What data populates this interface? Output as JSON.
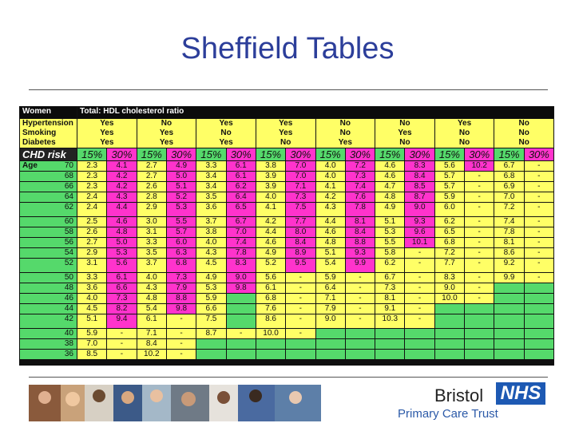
{
  "slide": {
    "title": "Sheffield Tables"
  },
  "table": {
    "header": {
      "group": "Women",
      "metric": "Total: HDL cholesterol ratio"
    },
    "flag_labels": [
      "Hypertension",
      "Smoking",
      "Diabetes"
    ],
    "groups": [
      {
        "h": "Yes",
        "s": "Yes",
        "d": "Yes"
      },
      {
        "h": "No",
        "s": "Yes",
        "d": "Yes"
      },
      {
        "h": "Yes",
        "s": "No",
        "d": "Yes"
      },
      {
        "h": "Yes",
        "s": "Yes",
        "d": "No"
      },
      {
        "h": "No",
        "s": "No",
        "d": "Yes"
      },
      {
        "h": "No",
        "s": "Yes",
        "d": "No"
      },
      {
        "h": "Yes",
        "s": "No",
        "d": "No"
      },
      {
        "h": "No",
        "s": "No",
        "d": "No"
      }
    ],
    "chd_label": "CHD risk",
    "age_label": "Age",
    "risk_labels": [
      "15%",
      "30%"
    ],
    "rows": [
      {
        "age": "70",
        "v": [
          "2.3",
          "4.1",
          "2.7",
          "4.9",
          "3.3",
          "6.1",
          "3.8",
          "7.0",
          "4.0",
          "7.2",
          "4.6",
          "8.3",
          "5.6",
          "10.2",
          "6.7",
          "-"
        ]
      },
      {
        "age": "68",
        "v": [
          "2.3",
          "4.2",
          "2.7",
          "5.0",
          "3.4",
          "6.1",
          "3.9",
          "7.0",
          "4.0",
          "7.3",
          "4.6",
          "8.4",
          "5.7",
          "-",
          "6.8",
          "-"
        ]
      },
      {
        "age": "66",
        "v": [
          "2.3",
          "4.2",
          "2.6",
          "5.1",
          "3.4",
          "6.2",
          "3.9",
          "7.1",
          "4.1",
          "7.4",
          "4.7",
          "8.5",
          "5.7",
          "-",
          "6.9",
          "-"
        ]
      },
      {
        "age": "64",
        "v": [
          "2.4",
          "4.3",
          "2.8",
          "5.2",
          "3.5",
          "6.4",
          "4.0",
          "7.3",
          "4.2",
          "7.6",
          "4.8",
          "8.7",
          "5.9",
          "-",
          "7.0",
          "-"
        ]
      },
      {
        "age": "62",
        "v": [
          "2.4",
          "4.4",
          "2.9",
          "5.3",
          "3.6",
          "6.5",
          "4.1",
          "7.5",
          "4.3",
          "7.8",
          "4.9",
          "9.0",
          "6.0",
          "-",
          "7.2",
          "-"
        ]
      },
      {
        "age": "60",
        "v": [
          "2.5",
          "4.6",
          "3.0",
          "5.5",
          "3.7",
          "6.7",
          "4.2",
          "7.7",
          "4.4",
          "8.1",
          "5.1",
          "9.3",
          "6.2",
          "-",
          "7.4",
          "-"
        ]
      },
      {
        "age": "58",
        "v": [
          "2.6",
          "4.8",
          "3.1",
          "5.7",
          "3.8",
          "7.0",
          "4.4",
          "8.0",
          "4.6",
          "8.4",
          "5.3",
          "9.6",
          "6.5",
          "-",
          "7.8",
          "-"
        ]
      },
      {
        "age": "56",
        "v": [
          "2.7",
          "5.0",
          "3.3",
          "6.0",
          "4.0",
          "7.4",
          "4.6",
          "8.4",
          "4.8",
          "8.8",
          "5.5",
          "10.1",
          "6.8",
          "-",
          "8.1",
          "-"
        ]
      },
      {
        "age": "54",
        "v": [
          "2.9",
          "5.3",
          "3.5",
          "6.3",
          "4.3",
          "7.8",
          "4.9",
          "8.9",
          "5.1",
          "9.3",
          "5.8",
          "-",
          "7.2",
          "-",
          "8.6",
          "-"
        ]
      },
      {
        "age": "52",
        "v": [
          "3.1",
          "5.6",
          "3.7",
          "6.8",
          "4.5",
          "8.3",
          "5.2",
          "9.5",
          "5.4",
          "9.9",
          "6.2",
          "-",
          "7.7",
          "-",
          "9.2",
          "-"
        ]
      },
      {
        "age": "50",
        "v": [
          "3.3",
          "6.1",
          "4.0",
          "7.3",
          "4.9",
          "9.0",
          "5.6",
          "-",
          "5.9",
          "-",
          "6.7",
          "-",
          "8.3",
          "-",
          "9.9",
          "-"
        ]
      },
      {
        "age": "48",
        "v": [
          "3.6",
          "6.6",
          "4.3",
          "7.9",
          "5.3",
          "9.8",
          "6.1",
          "-",
          "6.4",
          "-",
          "7.3",
          "-",
          "9.0",
          "-",
          "",
          ""
        ]
      },
      {
        "age": "46",
        "v": [
          "4.0",
          "7.3",
          "4.8",
          "8.8",
          "5.9",
          "",
          "6.8",
          "-",
          "7.1",
          "-",
          "8.1",
          "-",
          "10.0",
          "-",
          "",
          ""
        ]
      },
      {
        "age": "44",
        "v": [
          "4.5",
          "8.2",
          "5.4",
          "9.8",
          "6.6",
          "",
          "7.6",
          "-",
          "7.9",
          "-",
          "9.1",
          "-",
          "",
          "",
          "",
          ""
        ]
      },
      {
        "age": "42",
        "v": [
          "5.1",
          "9.4",
          "6.1",
          "-",
          "7.5",
          "",
          "8.6",
          "-",
          "9.0",
          "-",
          "10.3",
          "-",
          "",
          "",
          "",
          ""
        ]
      },
      {
        "age": "40",
        "v": [
          "5.9",
          "-",
          "7.1",
          "-",
          "8.7",
          "-",
          "10.0",
          "-",
          "",
          "",
          "",
          "",
          "",
          "",
          "",
          ""
        ]
      },
      {
        "age": "38",
        "v": [
          "7.0",
          "-",
          "8.4",
          "-",
          "",
          "",
          "",
          "",
          "",
          "",
          "",
          "",
          "",
          "",
          "",
          ""
        ]
      },
      {
        "age": "36",
        "v": [
          "8.5",
          "-",
          "10.2",
          "-",
          "",
          "",
          "",
          "",
          "",
          "",
          "",
          "",
          "",
          "",
          "",
          ""
        ]
      }
    ]
  },
  "footer": {
    "org": "Bristol",
    "nhs": "NHS",
    "trust": "Primary Care Trust"
  }
}
